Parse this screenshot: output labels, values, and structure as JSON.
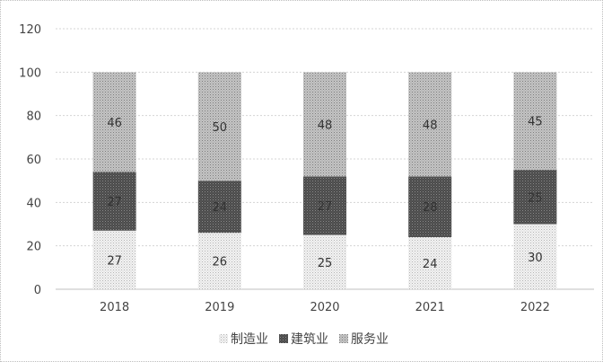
{
  "chart_data": {
    "type": "bar",
    "stacked": true,
    "categories": [
      "2018",
      "2019",
      "2020",
      "2021",
      "2022"
    ],
    "series": [
      {
        "name": "制造业",
        "values": [
          27,
          26,
          25,
          24,
          30
        ],
        "color": "#d9d9d9",
        "pattern": "light-dots"
      },
      {
        "name": "建筑业",
        "values": [
          27,
          24,
          27,
          28,
          25
        ],
        "color": "#5a5a5a",
        "pattern": "dark-dots"
      },
      {
        "name": "服务业",
        "values": [
          46,
          50,
          48,
          48,
          45
        ],
        "color": "#a6a6a6",
        "pattern": "medium-dots"
      }
    ],
    "ylim": [
      0,
      120
    ],
    "yticks": [
      "0",
      "20",
      "40",
      "60",
      "80",
      "100",
      "120"
    ],
    "grid": true,
    "legend_position": "bottom",
    "title": "",
    "xlabel": "",
    "ylabel": ""
  }
}
